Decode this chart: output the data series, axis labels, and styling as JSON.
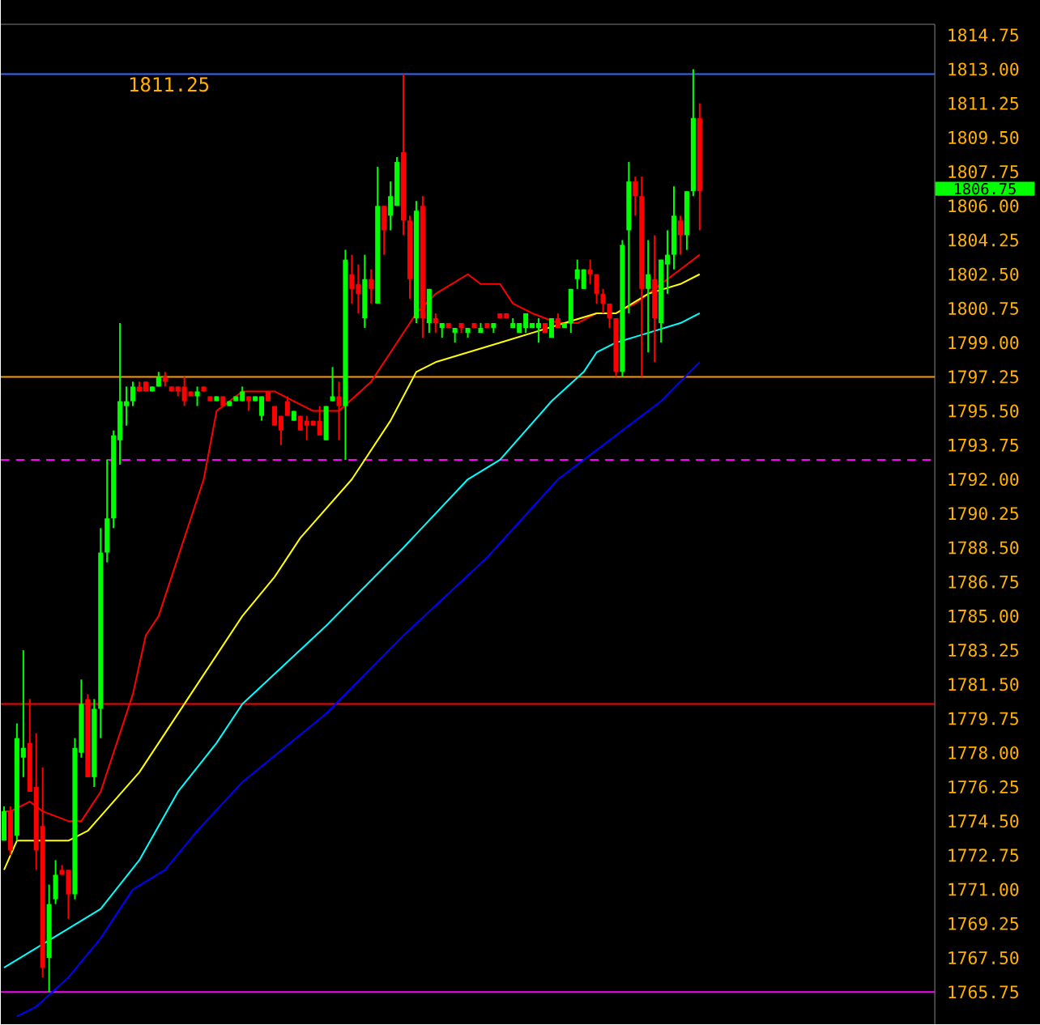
{
  "chart_data": {
    "type": "candlestick",
    "categories": [
      null,
      null,
      null,
      null,
      null,
      null,
      null,
      null,
      null,
      null,
      null,
      null,
      null,
      null,
      null,
      null,
      null,
      null,
      null,
      null,
      null,
      null,
      null,
      null,
      null,
      null,
      null,
      null,
      null,
      null,
      null,
      null,
      null,
      null,
      null,
      null,
      null,
      null,
      null,
      null,
      null,
      null,
      null,
      null,
      null,
      null,
      null,
      null,
      null,
      null,
      null,
      null,
      null,
      null,
      null,
      null,
      null,
      null,
      null,
      null,
      null,
      null,
      null,
      null,
      null,
      null,
      null,
      null,
      null,
      null,
      null,
      null,
      null,
      null,
      null,
      null,
      null,
      null,
      null,
      null,
      null,
      null,
      null,
      null,
      null,
      null,
      null,
      null,
      null,
      null,
      null,
      null,
      null,
      null,
      null,
      null,
      null,
      null,
      null,
      null,
      null,
      null,
      null,
      null,
      null,
      null,
      null,
      null,
      null,
      null,
      null,
      null,
      null,
      null,
      null,
      null,
      null,
      null,
      null,
      null,
      null,
      null,
      null,
      null,
      null,
      null,
      null,
      null,
      null,
      null,
      null,
      null,
      null,
      null,
      null,
      null,
      null,
      null,
      null,
      null,
      null,
      null,
      null,
      null,
      null
    ],
    "ohlc": [
      [
        1773.5,
        1775.25,
        1773.5,
        1775.0
      ],
      [
        1775.0,
        1775.25,
        1772.75,
        1773.0
      ],
      [
        1773.75,
        1779.5,
        1773.5,
        1778.75
      ],
      [
        1777.75,
        1783.25,
        1776.75,
        1778.25
      ],
      [
        1778.5,
        1780.75,
        1776.0,
        1776.0
      ],
      [
        1776.25,
        1779.0,
        1772.0,
        1773.0
      ],
      [
        1774.25,
        1777.25,
        1766.5,
        1767.0
      ],
      [
        1767.5,
        1771.25,
        1765.75,
        1770.25
      ],
      [
        1770.5,
        1772.5,
        1770.25,
        1771.75
      ],
      [
        1772.0,
        1772.25,
        1771.75,
        1771.75
      ],
      [
        1772.0,
        1772.0,
        1769.5,
        1770.75
      ],
      [
        1770.75,
        1778.75,
        1770.5,
        1778.25
      ],
      [
        1778.0,
        1781.75,
        1777.75,
        1780.5
      ],
      [
        1780.75,
        1781.0,
        1776.75,
        1776.75
      ],
      [
        1776.75,
        1780.75,
        1776.25,
        1780.25
      ],
      [
        1780.25,
        1789.5,
        1778.75,
        1788.25
      ],
      [
        1788.25,
        1793.0,
        1787.75,
        1790.0
      ],
      [
        1790.0,
        1794.5,
        1789.5,
        1794.25
      ],
      [
        1794.0,
        1800.0,
        1792.75,
        1796.0
      ],
      [
        1795.75,
        1796.75,
        1794.75,
        1796.0
      ],
      [
        1796.0,
        1797.0,
        1795.75,
        1796.75
      ],
      [
        1796.75,
        1797.0,
        1796.5,
        1796.5
      ],
      [
        1797.0,
        1797.0,
        1796.5,
        1796.5
      ],
      [
        1796.5,
        1796.75,
        1796.5,
        1796.75
      ],
      [
        1796.75,
        1797.5,
        1796.75,
        1797.25
      ],
      [
        1797.25,
        1797.5,
        1796.75,
        1797.0
      ],
      [
        1796.75,
        1796.75,
        1796.5,
        1796.5
      ],
      [
        1796.75,
        1796.75,
        1796.25,
        1796.5
      ],
      [
        1796.75,
        1797.25,
        1795.75,
        1796.0
      ],
      [
        1796.5,
        1796.5,
        1796.25,
        1796.25
      ],
      [
        1796.25,
        1796.75,
        1795.75,
        1796.5
      ],
      [
        1796.75,
        1796.75,
        1796.5,
        1796.5
      ],
      [
        1796.25,
        1796.25,
        1796.0,
        1796.0
      ],
      [
        1796.0,
        1796.25,
        1796.0,
        1796.25
      ],
      [
        1796.25,
        1796.25,
        1795.75,
        1795.75
      ],
      [
        1795.75,
        1796.0,
        1795.75,
        1796.0
      ],
      [
        1796.0,
        1796.25,
        1796.0,
        1796.25
      ],
      [
        1796.0,
        1796.75,
        1796.0,
        1796.5
      ],
      [
        1796.25,
        1796.25,
        1795.5,
        1796.0
      ],
      [
        1796.0,
        1796.25,
        1796.0,
        1796.25
      ],
      [
        1795.25,
        1796.25,
        1795.0,
        1796.25
      ],
      [
        1796.5,
        1796.5,
        1796.0,
        1796.0
      ],
      [
        1795.75,
        1795.75,
        1794.75,
        1794.75
      ],
      [
        1795.25,
        1795.25,
        1793.75,
        1794.5
      ],
      [
        1796.0,
        1796.25,
        1795.25,
        1795.25
      ],
      [
        1795.0,
        1795.5,
        1795.0,
        1795.5
      ],
      [
        1795.25,
        1795.25,
        1794.5,
        1794.5
      ],
      [
        1795.0,
        1795.25,
        1794.0,
        1794.75
      ],
      [
        1795.0,
        1795.0,
        1794.75,
        1794.75
      ],
      [
        1795.0,
        1795.75,
        1794.25,
        1794.25
      ],
      [
        1794.0,
        1795.75,
        1794.0,
        1795.75
      ],
      [
        1796.0,
        1797.75,
        1796.0,
        1796.25
      ],
      [
        1796.25,
        1797.0,
        1794.0,
        1795.75
      ],
      [
        1795.75,
        1803.75,
        1793.0,
        1803.25
      ],
      [
        1802.5,
        1803.5,
        1801.0,
        1801.75
      ],
      [
        1802.0,
        1803.0,
        1800.5,
        1801.5
      ],
      [
        1800.25,
        1803.5,
        1799.75,
        1802.25
      ],
      [
        1802.25,
        1802.75,
        1801.0,
        1801.75
      ],
      [
        1801.0,
        1808.0,
        1801.0,
        1806.0
      ],
      [
        1806.0,
        1806.0,
        1803.5,
        1804.75
      ],
      [
        1805.5,
        1807.25,
        1804.75,
        1806.5
      ],
      [
        1806.0,
        1808.5,
        1806.0,
        1808.25
      ],
      [
        1808.75,
        1812.75,
        1804.5,
        1805.25
      ],
      [
        1805.25,
        1805.5,
        1801.25,
        1802.25
      ],
      [
        1800.25,
        1806.25,
        1800.0,
        1805.75
      ],
      [
        1806.0,
        1806.5,
        1799.25,
        1800.25
      ],
      [
        1800.0,
        1801.75,
        1799.5,
        1801.75
      ],
      [
        1800.25,
        1800.5,
        1799.5,
        1800.0
      ],
      [
        1799.75,
        1800.0,
        1799.25,
        1800.0
      ],
      [
        1800.0,
        1800.0,
        1799.75,
        1799.75
      ],
      [
        1799.5,
        1799.75,
        1799.0,
        1799.75
      ],
      [
        1800.0,
        1800.0,
        1799.5,
        1799.75
      ],
      [
        1799.5,
        1799.75,
        1799.25,
        1799.75
      ],
      [
        1800.0,
        1800.0,
        1799.75,
        1799.75
      ],
      [
        1799.5,
        1800.0,
        1799.5,
        1799.75
      ],
      [
        1800.0,
        1800.0,
        1799.75,
        1799.75
      ],
      [
        1799.75,
        1800.0,
        1799.5,
        1800.0
      ],
      [
        1800.5,
        1800.5,
        1800.25,
        1800.25
      ],
      [
        1800.5,
        1800.5,
        1800.25,
        1800.25
      ],
      [
        1799.75,
        1800.25,
        1799.75,
        1800.0
      ],
      [
        1799.5,
        1800.0,
        1799.5,
        1800.0
      ],
      [
        1799.75,
        1800.5,
        1799.5,
        1800.5
      ],
      [
        1799.75,
        1800.0,
        1799.75,
        1800.0
      ],
      [
        1799.75,
        1800.25,
        1799.0,
        1800.0
      ],
      [
        1800.0,
        1800.0,
        1799.5,
        1799.5
      ],
      [
        1799.25,
        1800.25,
        1799.25,
        1800.25
      ],
      [
        1800.25,
        1800.5,
        1799.75,
        1799.75
      ],
      [
        1799.75,
        1800.0,
        1799.75,
        1800.0
      ],
      [
        1800.0,
        1801.75,
        1799.5,
        1801.75
      ],
      [
        1802.25,
        1803.25,
        1801.75,
        1802.75
      ],
      [
        1801.75,
        1802.75,
        1801.75,
        1802.75
      ],
      [
        1802.75,
        1803.25,
        1802.0,
        1802.5
      ],
      [
        1802.5,
        1802.5,
        1801.0,
        1801.5
      ],
      [
        1801.5,
        1801.75,
        1800.5,
        1801.0
      ],
      [
        1801.0,
        1801.0,
        1799.75,
        1800.25
      ],
      [
        1800.25,
        1800.25,
        1797.25,
        1797.5
      ],
      [
        1797.5,
        1804.25,
        1797.25,
        1804.0
      ],
      [
        1804.75,
        1808.25,
        1800.5,
        1807.25
      ],
      [
        1807.25,
        1807.5,
        1805.5,
        1806.5
      ],
      [
        1806.5,
        1807.5,
        1797.25,
        1801.75
      ],
      [
        1801.75,
        1804.25,
        1798.5,
        1802.5
      ],
      [
        1802.25,
        1804.5,
        1798.0,
        1800.25
      ],
      [
        1800.0,
        1803.25,
        1799.0,
        1803.25
      ],
      [
        1803.0,
        1804.75,
        1801.5,
        1803.5
      ],
      [
        1803.5,
        1807.0,
        1802.75,
        1805.5
      ],
      [
        1805.25,
        1805.5,
        1803.5,
        1804.5
      ],
      [
        1804.5,
        1806.75,
        1803.75,
        1806.75
      ],
      [
        1806.75,
        1813.0,
        1806.5,
        1810.5
      ],
      [
        1810.5,
        1811.25,
        1804.75,
        1806.75
      ],
      null,
      null,
      null,
      null,
      null,
      null,
      null,
      null,
      null,
      null,
      null,
      null,
      null,
      null,
      null,
      null,
      null,
      null,
      null,
      null,
      null,
      null,
      null,
      null,
      null,
      null,
      null,
      null,
      null,
      null,
      null,
      null,
      null,
      null,
      null,
      null
    ],
    "series": [
      {
        "type": "line",
        "color": "#ff0000",
        "values": [
          1775,
          1775,
          null,
          null,
          1775.5,
          null,
          1775,
          null,
          null,
          null,
          1774.5,
          null,
          1774.5,
          null,
          null,
          1776,
          null,
          1778,
          null,
          null,
          1781,
          null,
          1784,
          null,
          1785,
          null,
          1787,
          null,
          null,
          1790,
          null,
          1792,
          null,
          1795.5,
          null,
          1796,
          null,
          1796.5,
          null,
          null,
          null,
          null,
          1796.5,
          null,
          null,
          1796,
          null,
          null,
          1795.5,
          null,
          null,
          null,
          1795.5,
          null,
          null,
          null,
          null,
          1797,
          null,
          null,
          1798.5,
          null,
          null,
          null,
          1800.5,
          null,
          null,
          1801.5,
          null,
          null,
          null,
          null,
          1802.5,
          null,
          1802,
          null,
          null,
          1802,
          null,
          1801,
          null,
          null,
          1800.5,
          null,
          null,
          null,
          1800,
          null,
          null,
          1800,
          null,
          null,
          1800.5,
          null,
          null,
          1800.5,
          null,
          null,
          1801,
          null,
          null,
          null,
          1802,
          null,
          null,
          null,
          1803,
          null,
          1803.5,
          null,
          null,
          null,
          null,
          null,
          null,
          null,
          null,
          null,
          null,
          null,
          null,
          null,
          null,
          null,
          null,
          null,
          null,
          null,
          null,
          null,
          null,
          null,
          null,
          null,
          null,
          null,
          null,
          null,
          null,
          null,
          null,
          null,
          null,
          null,
          null
        ]
      },
      {
        "type": "line",
        "color": "#ffff00",
        "values": [
          1772,
          null,
          1773.5,
          null,
          null,
          null,
          1773.5,
          null,
          null,
          null,
          1773.5,
          null,
          null,
          1774,
          null,
          null,
          null,
          1775.5,
          null,
          null,
          null,
          1777,
          null,
          null,
          null,
          1779,
          null,
          null,
          null,
          1781,
          null,
          null,
          null,
          1783,
          null,
          null,
          null,
          1785,
          null,
          null,
          null,
          null,
          1787,
          null,
          null,
          null,
          1789,
          null,
          null,
          null,
          null,
          null,
          null,
          null,
          1792,
          null,
          null,
          null,
          null,
          null,
          1795,
          null,
          null,
          null,
          1797.5,
          null,
          null,
          1798,
          null,
          null,
          null,
          null,
          1798.5,
          null,
          null,
          null,
          null,
          1799,
          null,
          null,
          null,
          null,
          1799.5,
          null,
          null,
          null,
          null,
          1800,
          null,
          null,
          null,
          null,
          1800.5,
          null,
          null,
          1800.5,
          null,
          null,
          null,
          null,
          1801.5,
          null,
          null,
          null,
          null,
          1802,
          null,
          null,
          1802.5,
          null,
          null,
          null,
          null,
          null,
          null,
          null,
          null,
          null,
          null,
          null,
          null,
          null,
          null,
          null,
          null,
          null,
          null,
          null,
          null,
          null,
          null,
          null,
          null,
          null,
          null,
          null,
          null,
          null,
          null,
          null,
          null,
          null,
          null,
          null,
          null
        ]
      },
      {
        "type": "line",
        "color": "#00ffff",
        "values": [
          1767,
          null,
          null,
          null,
          null,
          1768,
          null,
          null,
          null,
          null,
          1769,
          null,
          null,
          null,
          null,
          1770,
          null,
          null,
          null,
          null,
          null,
          1772.5,
          null,
          null,
          null,
          null,
          null,
          1776,
          null,
          null,
          null,
          null,
          null,
          1778.5,
          null,
          null,
          null,
          1780.5,
          null,
          null,
          null,
          null,
          null,
          null,
          null,
          null,
          null,
          null,
          null,
          null,
          1784.5,
          null,
          null,
          null,
          null,
          null,
          null,
          null,
          null,
          null,
          null,
          null,
          1788.5,
          null,
          null,
          null,
          null,
          null,
          null,
          null,
          null,
          null,
          1792,
          null,
          null,
          null,
          null,
          1793,
          null,
          null,
          null,
          null,
          null,
          null,
          null,
          1796,
          null,
          null,
          null,
          null,
          1797.5,
          null,
          1798.5,
          null,
          null,
          1799,
          null,
          null,
          null,
          null,
          1799.5,
          null,
          null,
          null,
          null,
          1800,
          null,
          null,
          1800.5,
          null,
          null,
          null,
          null,
          null,
          null,
          null,
          null,
          null,
          null,
          null,
          null,
          null,
          null,
          null,
          null,
          null,
          null,
          null,
          null,
          null,
          null,
          null,
          null,
          null,
          null,
          null,
          null,
          null,
          null,
          null,
          null,
          null,
          null,
          null,
          null
        ]
      },
      {
        "type": "line",
        "color": "#0000ff",
        "values": [
          null,
          null,
          1764.5,
          null,
          null,
          1765,
          null,
          null,
          null,
          null,
          1766.5,
          null,
          null,
          null,
          null,
          1768.5,
          null,
          null,
          null,
          null,
          1771,
          null,
          null,
          null,
          null,
          1772,
          null,
          null,
          null,
          null,
          1774,
          null,
          null,
          null,
          null,
          null,
          null,
          1776.5,
          null,
          null,
          null,
          null,
          null,
          null,
          null,
          null,
          null,
          null,
          null,
          null,
          1780,
          null,
          null,
          null,
          null,
          null,
          null,
          null,
          null,
          null,
          null,
          null,
          1784,
          null,
          null,
          null,
          null,
          null,
          null,
          null,
          null,
          null,
          null,
          null,
          null,
          1788,
          null,
          null,
          null,
          null,
          null,
          null,
          null,
          null,
          null,
          null,
          1792,
          null,
          null,
          null,
          null,
          null,
          1793.5,
          null,
          null,
          null,
          null,
          null,
          1795,
          null,
          null,
          null,
          1796,
          null,
          null,
          null,
          null,
          null,
          1798,
          null,
          null,
          null,
          null,
          null,
          null,
          null,
          null,
          null,
          null,
          null,
          null,
          null,
          null,
          null,
          null,
          null,
          null,
          null,
          null,
          null,
          null,
          null,
          null,
          null,
          null,
          null,
          null,
          null,
          null,
          null,
          null,
          null,
          null,
          null,
          null
        ]
      }
    ],
    "ylim": [
      1764.1,
      1815.3
    ],
    "yticks": [
      1765.75,
      {
        "value": 1767.5,
        "label": "1767.50"
      },
      1769.25,
      {
        "value": 1771,
        "label": "1771.00"
      },
      1772.75,
      {
        "value": 1774.5,
        "label": "1774.50"
      },
      1776.25,
      {
        "value": 1778,
        "label": "1778.00"
      },
      1779.75,
      {
        "value": 1781.5,
        "label": "1781.50"
      },
      1783.25,
      {
        "value": 1785,
        "label": "1785.00"
      },
      1786.75,
      {
        "value": 1788.5,
        "label": "1788.50"
      },
      1790.25,
      {
        "value": 1792,
        "label": "1792.00"
      },
      1793.75,
      {
        "value": 1795.5,
        "label": "1795.50"
      },
      1797.25,
      {
        "value": 1799,
        "label": "1799.00"
      },
      1800.75,
      {
        "value": 1802.5,
        "label": "1802.50"
      },
      1804.25,
      {
        "value": 1806,
        "label": "1806.00"
      },
      1807.75,
      {
        "value": 1809.5,
        "label": "1809.50"
      },
      1811.25,
      {
        "value": 1813,
        "label": "1813.00"
      },
      1814.75
    ],
    "tick_labels": "y",
    "ref_lines": [
      {
        "axis": "y",
        "value": 1812.75,
        "color": "#3366ff"
      },
      {
        "axis": "y",
        "value": 1797.25,
        "color": "#ff9900"
      },
      {
        "axis": "y",
        "value": 1793.0,
        "color": "#ff00ff",
        "line_style": "dashed"
      },
      {
        "axis": "y",
        "value": 1780.5,
        "color": "#ff0000"
      },
      {
        "axis": "y",
        "value": 1765.75,
        "color": "#ff00ff"
      }
    ],
    "annotations": [
      "1811.25",
      "1806.75"
    ]
  }
}
